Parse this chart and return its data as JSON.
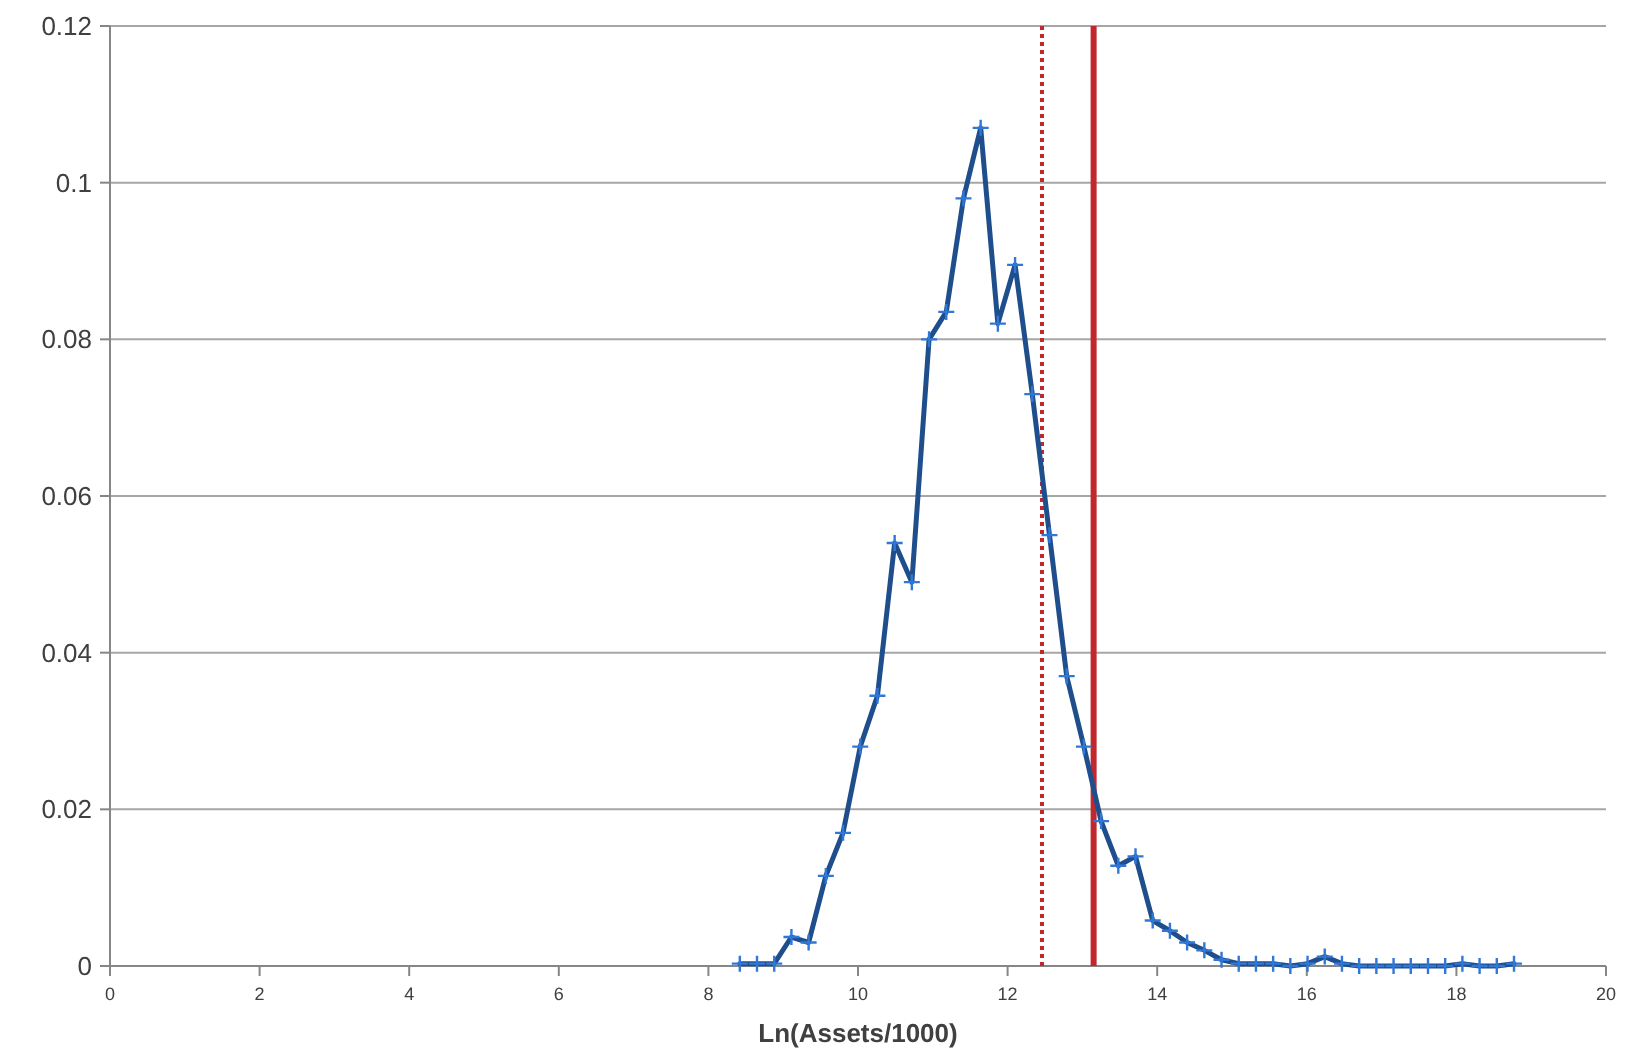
{
  "chart_data": {
    "type": "line",
    "xlabel": "Ln(Assets/1000)",
    "x": [
      8.42,
      8.65,
      8.88,
      9.11,
      9.34,
      9.57,
      9.8,
      10.03,
      10.26,
      10.49,
      10.72,
      10.95,
      11.18,
      11.41,
      11.64,
      11.87,
      12.1,
      12.33,
      12.56,
      12.79,
      13.02,
      13.25,
      13.48,
      13.71,
      13.94,
      14.17,
      14.4,
      14.63,
      14.86,
      15.09,
      15.32,
      15.55,
      15.78,
      16.01,
      16.24,
      16.47,
      16.7,
      16.93,
      17.16,
      17.39,
      17.62,
      17.85,
      18.08,
      18.31,
      18.54,
      18.77
    ],
    "series": [
      {
        "color": "#1f4e8c",
        "values": [
          0.0003,
          0.0003,
          0.0003,
          0.0037,
          0.003,
          0.0115,
          0.017,
          0.028,
          0.0345,
          0.054,
          0.049,
          0.08,
          0.0835,
          0.098,
          0.107,
          0.082,
          0.0895,
          0.073,
          0.055,
          0.037,
          0.028,
          0.0185,
          0.0128,
          0.014,
          0.0058,
          0.0045,
          0.003,
          0.002,
          0.0008,
          0.0003,
          0.0003,
          0.0003,
          0,
          0.0003,
          0.0012,
          0.0003,
          0,
          0,
          0,
          0,
          0,
          0,
          0.0003,
          0,
          0,
          0.0003
        ]
      }
    ],
    "xlim": [
      0,
      20
    ],
    "xticks": [
      0,
      2,
      4,
      6,
      8,
      10,
      12,
      14,
      16,
      18,
      20
    ],
    "ylim": [
      0,
      0.12
    ],
    "yticks": [
      0,
      0.02,
      0.04,
      0.06,
      0.08,
      0.1,
      0.12
    ],
    "grid": "y",
    "marker": "cross",
    "line_style": "solid",
    "ref_lines": [
      {
        "axis": "x",
        "value": 12.46,
        "color": "#c0282d",
        "line_style": "dotted"
      },
      {
        "axis": "x",
        "value": 13.15,
        "color": "#c0282d",
        "line_style": "solid"
      }
    ]
  }
}
